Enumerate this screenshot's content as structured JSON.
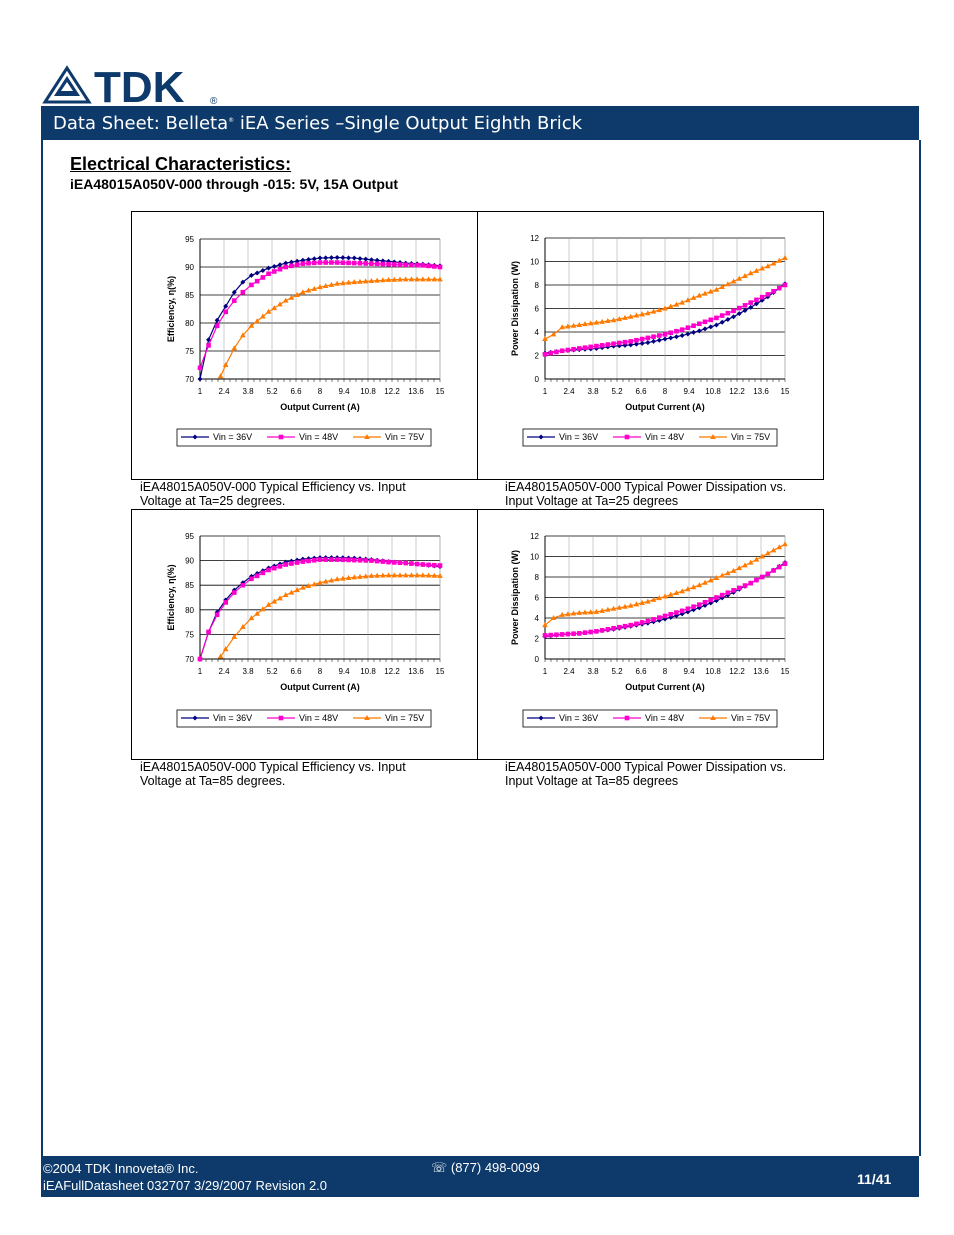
{
  "brand": {
    "logo_text": "TDK",
    "registered": "®"
  },
  "header": {
    "title_a": "Data Sheet: Belleta",
    "title_sup": "®",
    "title_b": " iEA Series –Single Output Eighth Brick"
  },
  "section": {
    "title": "Electrical Characteristics:",
    "subtitle": "iEA48015A050V-000 through -015: 5V, 15A Output"
  },
  "captions": [
    "iEA48015A050V-000 Typical Efficiency vs. Input Voltage at Ta=25 degrees.",
    "iEA48015A050V-000 Typical Power Dissipation vs. Input Voltage at Ta=25 degrees",
    "iEA48015A050V-000 Typical Efficiency vs. Input Voltage at Ta=85 degrees.",
    "iEA48015A050V-000 Typical Power Dissipation vs. Input Voltage at Ta=85 degrees"
  ],
  "footer": {
    "copyright": "©2004  TDK Innoveta®  Inc.",
    "docinfo": "iEAFullDatasheet 032707  3/29/2007  Revision 2.0",
    "phone": "☏ (877) 498-0099",
    "page": "11/41"
  },
  "colors": {
    "navy": "#0d3a6a",
    "series36": "#000080",
    "series48": "#ff00cc",
    "series75": "#ff7a00"
  },
  "chart_data": [
    {
      "type": "line",
      "xlabel": "Output Current (A)",
      "ylabel": "Efficiency, η(%)",
      "xlim": [
        1,
        15
      ],
      "ylim": [
        70,
        95
      ],
      "xticks": [
        "1",
        "2.4",
        "3.8",
        "5.2",
        "6.6",
        "8",
        "9.4",
        "10.8",
        "12.2",
        "13.6",
        "15"
      ],
      "yticks": [
        "70",
        "75",
        "80",
        "85",
        "90",
        "95"
      ],
      "series": [
        {
          "name": "Vin = 36V",
          "x": [
            1,
            1.5,
            2,
            2.5,
            3,
            3.5,
            4,
            5,
            6,
            7,
            8,
            9,
            10,
            11,
            12,
            13,
            14,
            15
          ],
          "y": [
            70,
            77,
            80.5,
            83,
            85.5,
            87.3,
            88.5,
            89.8,
            90.7,
            91.2,
            91.6,
            91.7,
            91.6,
            91.3,
            91,
            90.7,
            90.5,
            90.2
          ]
        },
        {
          "name": "Vin = 48V",
          "x": [
            1,
            1.5,
            2,
            2.5,
            3,
            3.5,
            4,
            5,
            6,
            7,
            8,
            9,
            10,
            11,
            12,
            13,
            14,
            15
          ],
          "y": [
            72,
            76,
            79.5,
            82,
            84,
            85.5,
            86.8,
            88.8,
            90,
            90.6,
            90.8,
            90.8,
            90.7,
            90.6,
            90.5,
            90.4,
            90.3,
            90
          ]
        },
        {
          "name": "Vin = 75V",
          "x": [
            2.2,
            2.5,
            3,
            3.5,
            4,
            5,
            6,
            7,
            8,
            9,
            10,
            11,
            12,
            13,
            14,
            15
          ],
          "y": [
            70.5,
            72.5,
            75.5,
            77.8,
            79.5,
            82,
            84,
            85.5,
            86.4,
            87,
            87.3,
            87.5,
            87.7,
            87.8,
            87.8,
            87.8
          ]
        }
      ]
    },
    {
      "type": "line",
      "xlabel": "Output Current (A)",
      "ylabel": "Power Dissipation (W)",
      "xlim": [
        1,
        15
      ],
      "ylim": [
        0,
        12
      ],
      "xticks": [
        "1",
        "2.4",
        "3.8",
        "5.2",
        "6.6",
        "8",
        "9.4",
        "10.8",
        "12.2",
        "13.6",
        "15"
      ],
      "yticks": [
        "0",
        "2",
        "4",
        "6",
        "8",
        "10",
        "12"
      ],
      "series": [
        {
          "name": "Vin = 36V",
          "x": [
            1,
            2,
            3,
            4,
            5,
            6,
            7,
            8,
            9,
            10,
            11,
            12,
            13,
            14,
            15
          ],
          "y": [
            2.2,
            2.4,
            2.5,
            2.6,
            2.8,
            2.9,
            3.1,
            3.4,
            3.7,
            4.1,
            4.6,
            5.3,
            6.1,
            7,
            8.1
          ]
        },
        {
          "name": "Vin = 48V",
          "x": [
            1,
            2,
            3,
            4,
            5,
            6,
            7,
            8,
            9,
            10,
            11,
            12,
            13,
            14,
            15
          ],
          "y": [
            2.1,
            2.4,
            2.6,
            2.8,
            3,
            3.2,
            3.5,
            3.8,
            4.2,
            4.7,
            5.2,
            5.8,
            6.5,
            7.2,
            8
          ]
        },
        {
          "name": "Vin = 75V",
          "x": [
            1,
            1.5,
            2,
            3,
            4,
            5,
            6,
            7,
            8,
            9,
            10,
            11,
            12,
            13,
            14,
            15
          ],
          "y": [
            3.4,
            3.8,
            4.4,
            4.6,
            4.8,
            5,
            5.3,
            5.6,
            6,
            6.5,
            7.1,
            7.6,
            8.3,
            9,
            9.6,
            10.3
          ]
        }
      ]
    },
    {
      "type": "line",
      "xlabel": "Output Current (A)",
      "ylabel": "Efficiency, η(%)",
      "xlim": [
        1,
        15
      ],
      "ylim": [
        70,
        95
      ],
      "xticks": [
        "1",
        "2.4",
        "3.8",
        "5.2",
        "6.6",
        "8",
        "9.4",
        "10.8",
        "12.2",
        "13.6",
        "15"
      ],
      "yticks": [
        "70",
        "75",
        "80",
        "85",
        "90",
        "95"
      ],
      "series": [
        {
          "name": "Vin = 36V",
          "x": [
            1,
            1.5,
            2,
            2.5,
            3,
            3.5,
            4,
            5,
            6,
            7,
            8,
            9,
            10,
            11,
            12,
            13,
            14,
            15
          ],
          "y": [
            70,
            75.5,
            79.5,
            82,
            84,
            85.5,
            86.8,
            88.5,
            89.7,
            90.3,
            90.6,
            90.6,
            90.5,
            90.2,
            89.8,
            89.5,
            89.2,
            88.8
          ]
        },
        {
          "name": "Vin = 48V",
          "x": [
            1,
            1.5,
            2,
            2.5,
            3,
            3.5,
            4,
            5,
            6,
            7,
            8,
            9,
            10,
            11,
            12,
            13,
            14,
            15
          ],
          "y": [
            70,
            75.5,
            79,
            81.5,
            83.5,
            85,
            86.3,
            88.1,
            89.2,
            89.8,
            90.2,
            90.2,
            90.1,
            90,
            89.7,
            89.5,
            89.2,
            89
          ]
        },
        {
          "name": "Vin = 75V",
          "x": [
            2.2,
            2.5,
            3,
            3.5,
            4,
            5,
            6,
            7,
            8,
            9,
            10,
            11,
            12,
            13,
            14,
            15
          ],
          "y": [
            70.5,
            72,
            74.5,
            76.5,
            78.3,
            81,
            83,
            84.5,
            85.5,
            86.2,
            86.6,
            86.9,
            87,
            87,
            87,
            86.9
          ]
        }
      ]
    },
    {
      "type": "line",
      "xlabel": "Output Current (A)",
      "ylabel": "Power Dissipation (W)",
      "xlim": [
        1,
        15
      ],
      "ylim": [
        0,
        12
      ],
      "xticks": [
        "1",
        "2.4",
        "3.8",
        "5.2",
        "6.6",
        "8",
        "9.4",
        "10.8",
        "12.2",
        "13.6",
        "15"
      ],
      "yticks": [
        "0",
        "2",
        "4",
        "6",
        "8",
        "10",
        "12"
      ],
      "series": [
        {
          "name": "Vin = 36V",
          "x": [
            1,
            2,
            3,
            4,
            5,
            6,
            7,
            8,
            9,
            10,
            11,
            12,
            13,
            14,
            15
          ],
          "y": [
            2.2,
            2.4,
            2.5,
            2.7,
            2.9,
            3.2,
            3.5,
            3.9,
            4.4,
            5,
            5.7,
            6.5,
            7.4,
            8.3,
            9.4
          ]
        },
        {
          "name": "Vin = 48V",
          "x": [
            1,
            2,
            3,
            4,
            5,
            6,
            7,
            8,
            9,
            10,
            11,
            12,
            13,
            14,
            15
          ],
          "y": [
            2.3,
            2.4,
            2.5,
            2.7,
            3,
            3.3,
            3.7,
            4.2,
            4.7,
            5.3,
            6,
            6.7,
            7.4,
            8.3,
            9.3
          ]
        },
        {
          "name": "Vin = 75V",
          "x": [
            1,
            1.5,
            2,
            3,
            4,
            5,
            6,
            7,
            8,
            9,
            10,
            11,
            12,
            13,
            14,
            15
          ],
          "y": [
            3.3,
            4,
            4.3,
            4.5,
            4.6,
            4.9,
            5.2,
            5.6,
            6.1,
            6.6,
            7.2,
            7.9,
            8.6,
            9.4,
            10.3,
            11.2
          ]
        }
      ]
    }
  ]
}
